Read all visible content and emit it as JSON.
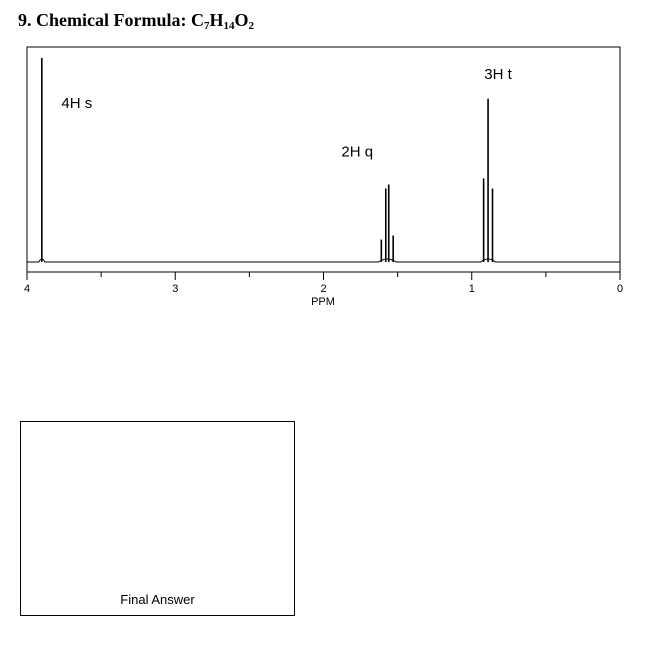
{
  "question": {
    "number": "9.",
    "label": "Chemical Formula:",
    "formula": [
      {
        "el": "C",
        "n": "7"
      },
      {
        "el": "H",
        "n": "14"
      },
      {
        "el": "O",
        "n": "2"
      }
    ]
  },
  "chart_data": {
    "type": "line",
    "title": "",
    "xlabel": "PPM",
    "ylabel": "",
    "xlim": [
      4,
      0
    ],
    "x_reversed": true,
    "major_ticks": [
      "4",
      "3",
      "2",
      "1",
      "0"
    ],
    "minor_ticks": [
      3.5,
      2.5,
      1.5,
      0.5
    ],
    "grid": false,
    "peaks": [
      {
        "label": "4H s",
        "shift": 3.9,
        "multiplicity": "s",
        "lines": [
          {
            "x": 3.9,
            "h": 1.0
          }
        ]
      },
      {
        "label": "2H q",
        "shift": 1.57,
        "multiplicity": "q",
        "lines": [
          {
            "x": 1.61,
            "h": 0.11
          },
          {
            "x": 1.58,
            "h": 0.36
          },
          {
            "x": 1.56,
            "h": 0.38
          },
          {
            "x": 1.53,
            "h": 0.13
          }
        ]
      },
      {
        "label": "3H t",
        "shift": 0.89,
        "multiplicity": "t",
        "lines": [
          {
            "x": 0.92,
            "h": 0.41
          },
          {
            "x": 0.89,
            "h": 0.8
          },
          {
            "x": 0.86,
            "h": 0.36
          }
        ]
      }
    ]
  },
  "answer_box": {
    "label": "Final Answer"
  }
}
